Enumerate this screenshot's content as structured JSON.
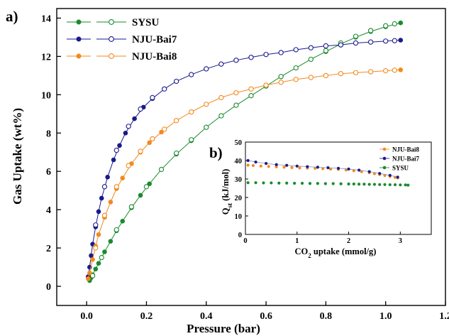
{
  "chart_data": [
    {
      "panel_label": "a)",
      "type": "scatter",
      "xlabel": "Pressure (bar)",
      "ylabel": "Gas Uptake (wt%)",
      "xlim": [
        -0.1,
        1.2
      ],
      "ylim": [
        -1,
        14.5
      ],
      "xticks": [
        "0.0",
        "0.2",
        "0.4",
        "0.6",
        "0.8",
        "1.0",
        "1.2"
      ],
      "yticks": [
        "0",
        "2",
        "4",
        "6",
        "8",
        "10",
        "12",
        "14"
      ],
      "legend_position": "top-left",
      "series": [
        {
          "name": "SYSU",
          "color": "#1a8a2e",
          "adsorption": {
            "x": [
              0.01,
              0.015,
              0.02,
              0.03,
              0.04,
              0.06,
              0.08,
              0.1,
              0.12,
              0.15,
              0.18,
              0.21,
              0.25,
              0.3,
              0.35,
              0.4,
              0.45,
              0.5,
              0.55,
              0.6,
              0.65,
              0.7,
              0.75,
              0.8,
              0.85,
              0.9,
              0.95,
              1.0,
              1.05
            ],
            "y": [
              0.3,
              0.45,
              0.6,
              0.9,
              1.2,
              1.8,
              2.35,
              2.9,
              3.4,
              4.1,
              4.75,
              5.35,
              6.1,
              6.9,
              7.6,
              8.3,
              8.9,
              9.45,
              9.95,
              10.45,
              10.95,
              11.4,
              11.85,
              12.25,
              12.65,
              13.0,
              13.3,
              13.55,
              13.75
            ]
          },
          "desorption": {
            "x": [
              0.02,
              0.05,
              0.1,
              0.15,
              0.2,
              0.25,
              0.3,
              0.35,
              0.4,
              0.45,
              0.5,
              0.55,
              0.6,
              0.65,
              0.7,
              0.75,
              0.8,
              0.85,
              0.9,
              0.95,
              1.0,
              1.03
            ],
            "y": [
              0.55,
              1.5,
              2.95,
              4.15,
              5.2,
              6.1,
              6.95,
              7.65,
              8.3,
              8.9,
              9.45,
              9.95,
              10.45,
              10.95,
              11.4,
              11.85,
              12.3,
              12.7,
              13.05,
              13.35,
              13.6,
              13.7
            ]
          }
        },
        {
          "name": "NJU-Bai7",
          "color": "#1a1a8c",
          "adsorption": {
            "x": [
              0.005,
              0.01,
              0.015,
              0.02,
              0.03,
              0.04,
              0.05,
              0.07,
              0.09,
              0.11,
              0.13,
              0.16,
              0.19,
              0.22,
              0.26,
              0.3,
              0.35,
              0.4,
              0.45,
              0.5,
              0.55,
              0.6,
              0.65,
              0.7,
              0.75,
              0.8,
              0.85,
              0.9,
              0.95,
              1.0,
              1.05
            ],
            "y": [
              0.5,
              1.0,
              1.6,
              2.2,
              3.1,
              3.9,
              4.6,
              5.7,
              6.6,
              7.35,
              8.0,
              8.75,
              9.35,
              9.8,
              10.3,
              10.7,
              11.05,
              11.35,
              11.6,
              11.8,
              11.95,
              12.1,
              12.2,
              12.35,
              12.45,
              12.55,
              12.6,
              12.7,
              12.75,
              12.8,
              12.85
            ]
          },
          "desorption": {
            "x": [
              0.03,
              0.06,
              0.1,
              0.14,
              0.18,
              0.22,
              0.26,
              0.3,
              0.35,
              0.4,
              0.45,
              0.5,
              0.55,
              0.6,
              0.65,
              0.7,
              0.75,
              0.8,
              0.85,
              0.9,
              0.95,
              1.0,
              1.03
            ],
            "y": [
              3.2,
              5.2,
              7.1,
              8.35,
              9.25,
              9.85,
              10.3,
              10.7,
              11.05,
              11.35,
              11.6,
              11.8,
              11.95,
              12.1,
              12.2,
              12.35,
              12.45,
              12.55,
              12.6,
              12.7,
              12.75,
              12.8,
              12.82
            ]
          }
        },
        {
          "name": "NJU-Bai8",
          "color": "#f28a1e",
          "adsorption": {
            "x": [
              0.005,
              0.01,
              0.02,
              0.03,
              0.04,
              0.06,
              0.08,
              0.1,
              0.12,
              0.15,
              0.18,
              0.21,
              0.25,
              0.3,
              0.35,
              0.4,
              0.45,
              0.5,
              0.55,
              0.6,
              0.65,
              0.7,
              0.75,
              0.8,
              0.85,
              0.9,
              0.95,
              1.0,
              1.05
            ],
            "y": [
              0.4,
              0.7,
              1.4,
              2.1,
              2.7,
              3.6,
              4.4,
              5.1,
              5.65,
              6.4,
              7.0,
              7.5,
              8.05,
              8.65,
              9.1,
              9.5,
              9.85,
              10.1,
              10.3,
              10.5,
              10.65,
              10.8,
              10.9,
              11.0,
              11.1,
              11.15,
              11.2,
              11.25,
              11.3
            ]
          },
          "desorption": {
            "x": [
              0.03,
              0.06,
              0.1,
              0.14,
              0.18,
              0.22,
              0.26,
              0.3,
              0.35,
              0.4,
              0.45,
              0.5,
              0.55,
              0.6,
              0.65,
              0.7,
              0.75,
              0.8,
              0.85,
              0.9,
              0.95,
              1.0,
              1.03
            ],
            "y": [
              2.0,
              3.7,
              5.2,
              6.3,
              7.05,
              7.7,
              8.2,
              8.65,
              9.1,
              9.5,
              9.85,
              10.1,
              10.3,
              10.5,
              10.65,
              10.8,
              10.9,
              11.0,
              11.1,
              11.15,
              11.2,
              11.25,
              11.28
            ]
          }
        }
      ]
    },
    {
      "panel_label": "b)",
      "type": "scatter",
      "xlabel": "CO2 uptake (mmol/g)",
      "ylabel": "Qst (kJ/mol)",
      "xlim": [
        0,
        3.6
      ],
      "ylim": [
        0,
        50
      ],
      "xticks": [
        "0",
        "1",
        "2",
        "3"
      ],
      "yticks": [
        "0",
        "10",
        "20",
        "30",
        "40",
        "50"
      ],
      "legend_position": "top-right",
      "series": [
        {
          "name": "NJU-Bai8",
          "color": "#f28a1e",
          "x": [
            0.05,
            0.15,
            0.3,
            0.45,
            0.6,
            0.75,
            0.9,
            1.05,
            1.2,
            1.35,
            1.5,
            1.65,
            1.8,
            1.95,
            2.1,
            2.25,
            2.4,
            2.5,
            2.6,
            2.7,
            2.8,
            2.9,
            2.95
          ],
          "y": [
            37.5,
            37.3,
            37.0,
            36.8,
            36.6,
            36.4,
            36.2,
            36.0,
            35.9,
            35.8,
            35.6,
            35.4,
            35.2,
            34.9,
            34.5,
            34.0,
            33.4,
            32.9,
            32.4,
            31.9,
            31.4,
            30.9,
            30.6
          ]
        },
        {
          "name": "NJU-Bai7",
          "color": "#1a1a8c",
          "x": [
            0.05,
            0.2,
            0.4,
            0.6,
            0.8,
            1.0,
            1.2,
            1.4,
            1.6,
            1.8,
            2.0,
            2.2,
            2.4,
            2.6,
            2.8,
            2.95
          ],
          "y": [
            40.0,
            39.2,
            38.4,
            37.8,
            37.4,
            37.0,
            36.7,
            36.4,
            36.1,
            35.8,
            35.4,
            34.8,
            34.0,
            33.0,
            32.0,
            31.0
          ]
        },
        {
          "name": "SYSU",
          "color": "#1a8a2e",
          "x": [
            0.05,
            0.2,
            0.35,
            0.5,
            0.65,
            0.8,
            0.95,
            1.1,
            1.25,
            1.4,
            1.55,
            1.7,
            1.85,
            2.0,
            2.1,
            2.2,
            2.3,
            2.4,
            2.5,
            2.6,
            2.7,
            2.8,
            2.9,
            3.0,
            3.1,
            3.15
          ],
          "y": [
            28.0,
            28.0,
            27.9,
            27.9,
            27.8,
            27.8,
            27.7,
            27.7,
            27.6,
            27.6,
            27.5,
            27.5,
            27.4,
            27.3,
            27.3,
            27.2,
            27.2,
            27.1,
            27.1,
            27.0,
            27.0,
            26.9,
            26.9,
            26.8,
            26.8,
            26.7
          ]
        }
      ]
    }
  ]
}
